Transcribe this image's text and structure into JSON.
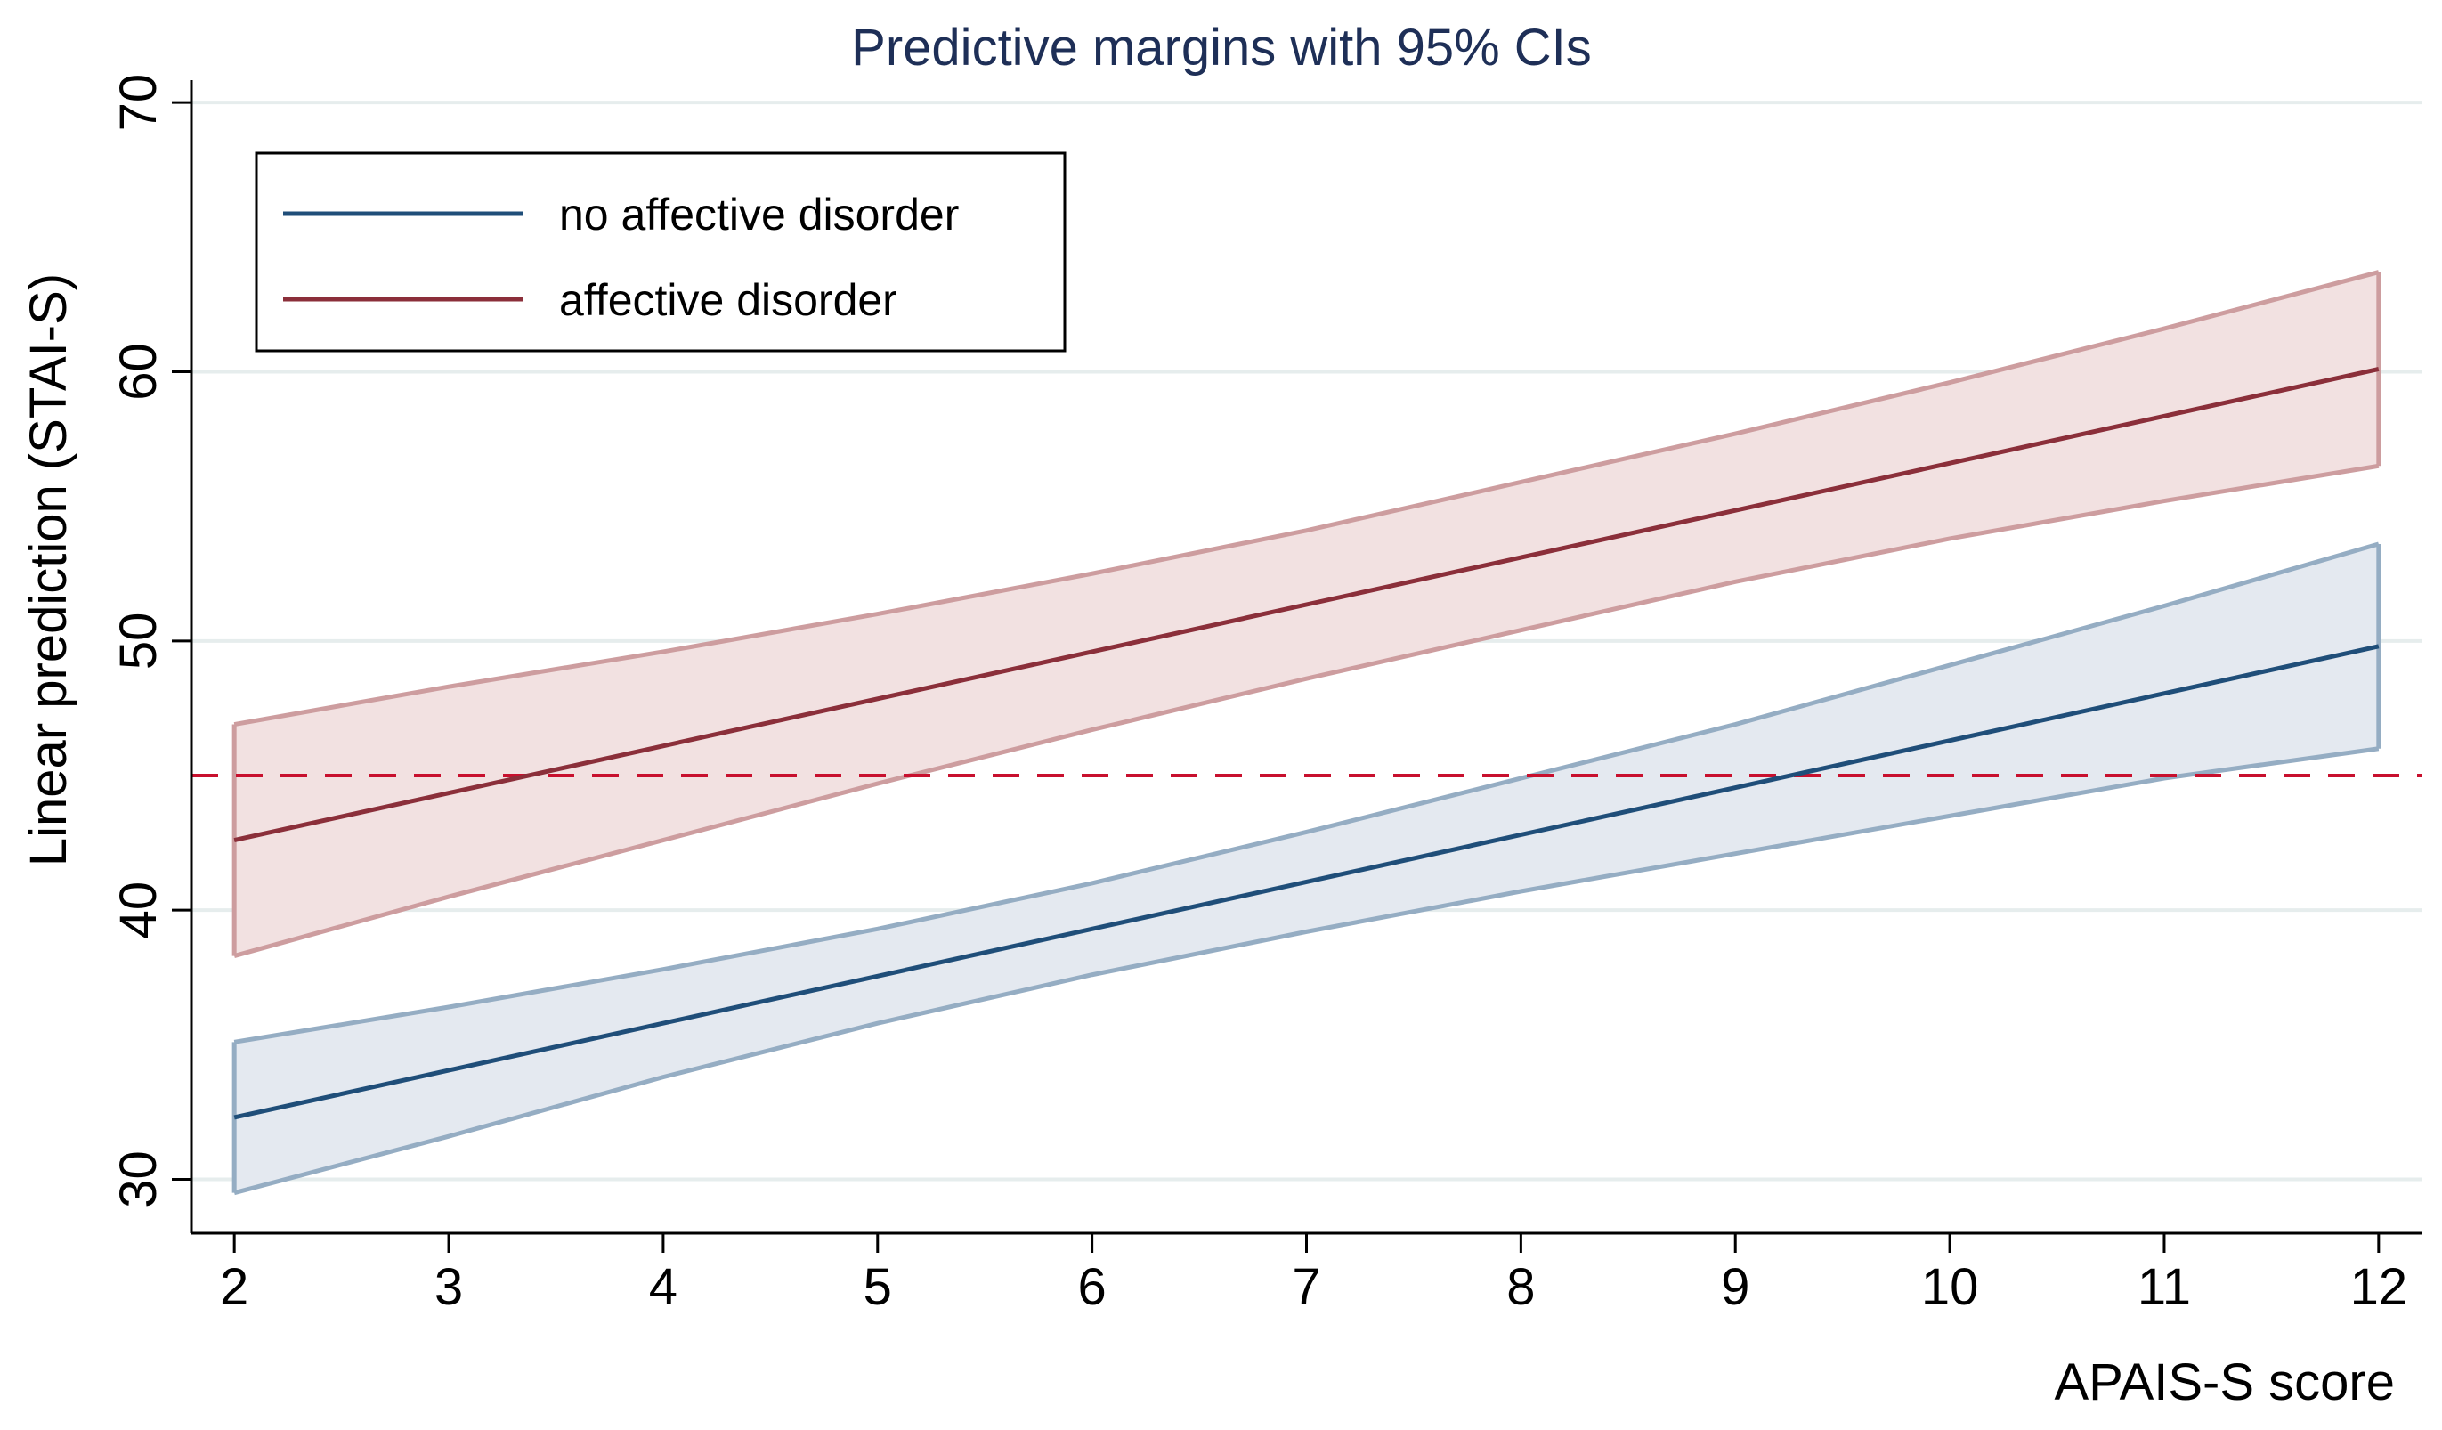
{
  "chart_data": {
    "type": "line",
    "title": "Predictive margins with 95% CIs",
    "xlabel": "APAIS-S score",
    "ylabel": "Linear prediction (STAI-S)",
    "x": [
      2,
      3,
      4,
      5,
      6,
      7,
      8,
      9,
      10,
      11,
      12
    ],
    "xticks": [
      2,
      3,
      4,
      5,
      6,
      7,
      8,
      9,
      10,
      11,
      12
    ],
    "yticks": [
      30,
      40,
      50,
      60,
      70
    ],
    "xlim": [
      1.8,
      12.2
    ],
    "ylim": [
      28,
      70.5
    ],
    "grid": true,
    "legend_position": "top-left",
    "series": [
      {
        "name": "no affective disorder",
        "color": "#1f4e79",
        "band_fill": "#e4e9f0",
        "band_edge": "#95adc3",
        "x": [
          2,
          12
        ],
        "values": [
          32.3,
          49.8
        ],
        "ci_x": [
          2,
          3,
          4,
          5,
          6,
          7,
          8,
          9,
          10,
          11,
          12
        ],
        "ci_upper": [
          35.1,
          36.4,
          37.8,
          39.3,
          41.0,
          42.9,
          44.9,
          46.9,
          49.1,
          51.3,
          53.6
        ],
        "ci_lower": [
          29.5,
          31.6,
          33.8,
          35.8,
          37.6,
          39.2,
          40.7,
          42.1,
          43.5,
          44.9,
          46.0
        ]
      },
      {
        "name": "affective disorder",
        "color": "#8b2f3a",
        "band_fill": "#f2e1e1",
        "band_edge": "#cd9d9f",
        "x": [
          2,
          12
        ],
        "values": [
          42.6,
          60.1
        ],
        "ci_x": [
          2,
          3,
          4,
          5,
          6,
          7,
          8,
          9,
          10,
          11,
          12
        ],
        "ci_upper": [
          46.9,
          48.3,
          49.6,
          51.0,
          52.5,
          54.1,
          55.9,
          57.7,
          59.6,
          61.6,
          63.7
        ],
        "ci_lower": [
          38.3,
          40.5,
          42.6,
          44.7,
          46.7,
          48.6,
          50.4,
          52.2,
          53.8,
          55.2,
          56.5
        ]
      }
    ],
    "reference_line": {
      "y": 45,
      "color": "#c8102e",
      "style": "dashed"
    },
    "colors": {
      "title": "#1e2f57",
      "axis": "#000000",
      "grid": "#e6eded"
    }
  }
}
